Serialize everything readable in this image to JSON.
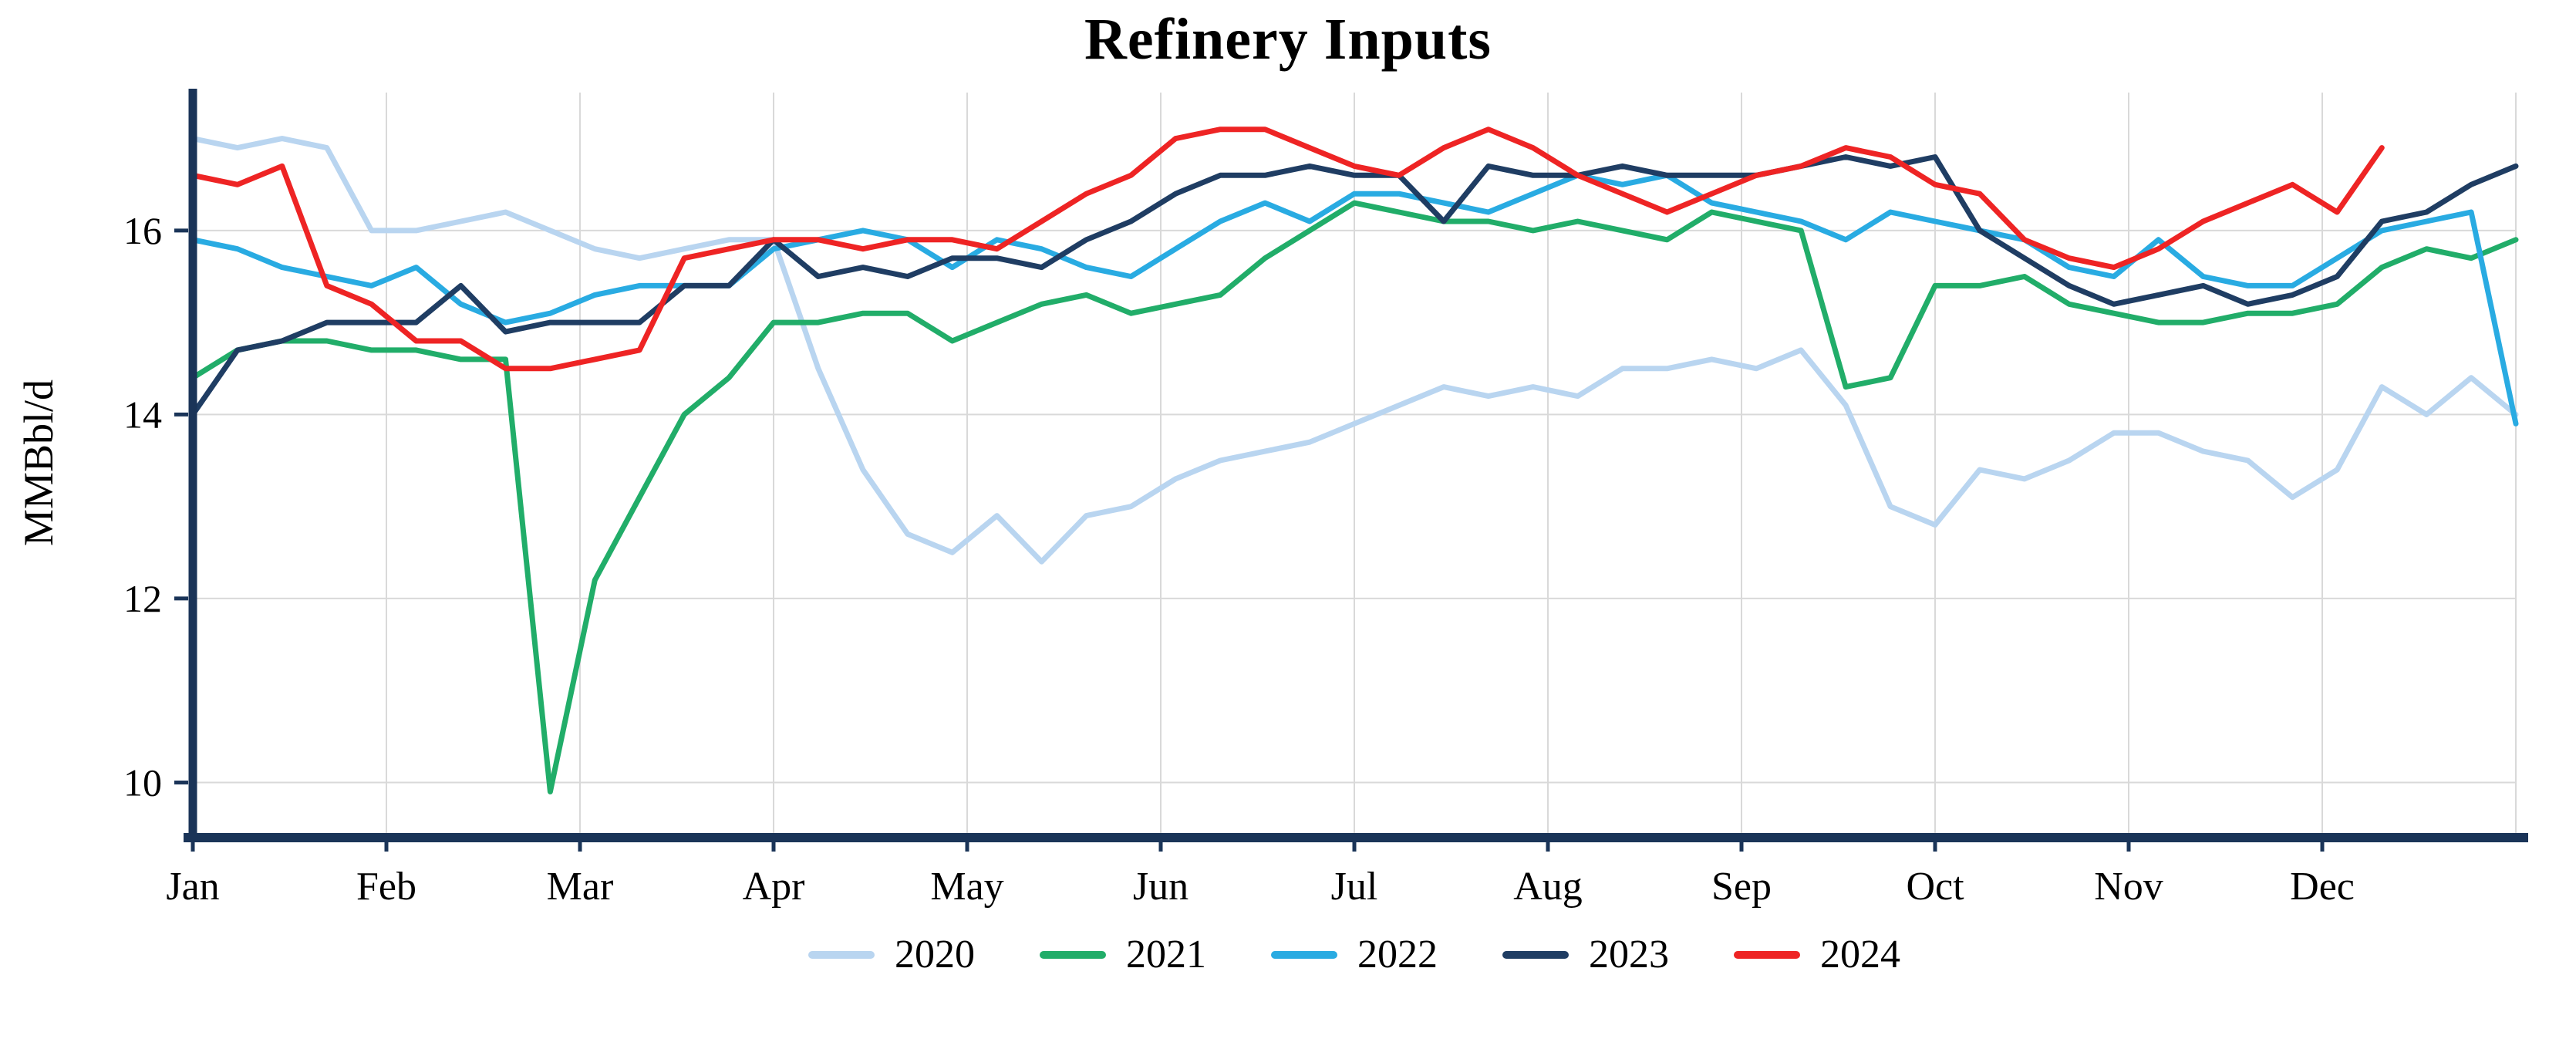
{
  "chart_data": {
    "type": "line",
    "title": "Refinery Inputs",
    "ylabel": "MMBbl/d",
    "xlabel": "",
    "axis_color": "#1a3458",
    "grid": {
      "show": true,
      "color": "#d9d9d9"
    },
    "x_axis": {
      "tick_labels": [
        "Jan",
        "Feb",
        "Mar",
        "Apr",
        "May",
        "Jun",
        "Jul",
        "Aug",
        "Sep",
        "Oct",
        "Nov",
        "Dec"
      ],
      "months_span": 12,
      "points_per_month": 4.3333
    },
    "y_axis": {
      "ticks": [
        10,
        12,
        14,
        16
      ],
      "lim": [
        9.4,
        17.5
      ]
    },
    "legend_position": "bottom",
    "series": [
      {
        "name": "2020",
        "color": "#b9d5f0",
        "values": [
          17.0,
          16.9,
          17.0,
          16.9,
          16.0,
          16.0,
          16.1,
          16.2,
          16.0,
          15.8,
          15.7,
          15.8,
          15.9,
          15.9,
          14.5,
          13.4,
          12.7,
          12.5,
          12.9,
          12.4,
          12.9,
          13.0,
          13.3,
          13.5,
          13.6,
          13.7,
          13.9,
          14.1,
          14.3,
          14.2,
          14.3,
          14.2,
          14.5,
          14.5,
          14.6,
          14.5,
          14.7,
          14.1,
          13.0,
          12.8,
          13.4,
          13.3,
          13.5,
          13.8,
          13.8,
          13.6,
          13.5,
          13.1,
          13.4,
          14.3,
          14.0,
          14.4,
          14.0
        ]
      },
      {
        "name": "2021",
        "color": "#21ad69",
        "values": [
          14.4,
          14.7,
          14.8,
          14.8,
          14.7,
          14.7,
          14.6,
          14.6,
          9.9,
          12.2,
          13.1,
          14.0,
          14.4,
          15.0,
          15.0,
          15.1,
          15.1,
          14.8,
          15.0,
          15.2,
          15.3,
          15.1,
          15.2,
          15.3,
          15.7,
          16.0,
          16.3,
          16.2,
          16.1,
          16.1,
          16.0,
          16.1,
          16.0,
          15.9,
          16.2,
          16.1,
          16.0,
          14.3,
          14.4,
          15.4,
          15.4,
          15.5,
          15.2,
          15.1,
          15.0,
          15.0,
          15.1,
          15.1,
          15.2,
          15.6,
          15.8,
          15.7,
          15.9
        ]
      },
      {
        "name": "2022",
        "color": "#29abe2",
        "values": [
          15.9,
          15.8,
          15.6,
          15.5,
          15.4,
          15.6,
          15.2,
          15.0,
          15.1,
          15.3,
          15.4,
          15.4,
          15.4,
          15.8,
          15.9,
          16.0,
          15.9,
          15.6,
          15.9,
          15.8,
          15.6,
          15.5,
          15.8,
          16.1,
          16.3,
          16.1,
          16.4,
          16.4,
          16.3,
          16.2,
          16.4,
          16.6,
          16.5,
          16.6,
          16.3,
          16.2,
          16.1,
          15.9,
          16.2,
          16.1,
          16.0,
          15.9,
          15.6,
          15.5,
          15.9,
          15.5,
          15.4,
          15.4,
          15.7,
          16.0,
          16.1,
          16.2,
          13.9
        ]
      },
      {
        "name": "2023",
        "color": "#1f3d63",
        "values": [
          14.0,
          14.7,
          14.8,
          15.0,
          15.0,
          15.0,
          15.4,
          14.9,
          15.0,
          15.0,
          15.0,
          15.4,
          15.4,
          15.9,
          15.5,
          15.6,
          15.5,
          15.7,
          15.7,
          15.6,
          15.9,
          16.1,
          16.4,
          16.6,
          16.6,
          16.7,
          16.6,
          16.6,
          16.1,
          16.7,
          16.6,
          16.6,
          16.7,
          16.6,
          16.6,
          16.6,
          16.7,
          16.8,
          16.7,
          16.8,
          16.0,
          15.7,
          15.4,
          15.2,
          15.3,
          15.4,
          15.2,
          15.3,
          15.5,
          16.1,
          16.2,
          16.5,
          16.7
        ]
      },
      {
        "name": "2024",
        "color": "#ee2424",
        "values": [
          16.6,
          16.5,
          16.7,
          15.4,
          15.2,
          14.8,
          14.8,
          14.5,
          14.5,
          14.6,
          14.7,
          15.7,
          15.8,
          15.9,
          15.9,
          15.8,
          15.9,
          15.9,
          15.8,
          16.1,
          16.4,
          16.6,
          17.0,
          17.1,
          17.1,
          16.9,
          16.7,
          16.6,
          16.9,
          17.1,
          16.9,
          16.6,
          16.4,
          16.2,
          16.4,
          16.6,
          16.7,
          16.9,
          16.8,
          16.5,
          16.4,
          15.9,
          15.7,
          15.6,
          15.8,
          16.1,
          16.3,
          16.5,
          16.2,
          16.9
        ]
      }
    ]
  }
}
